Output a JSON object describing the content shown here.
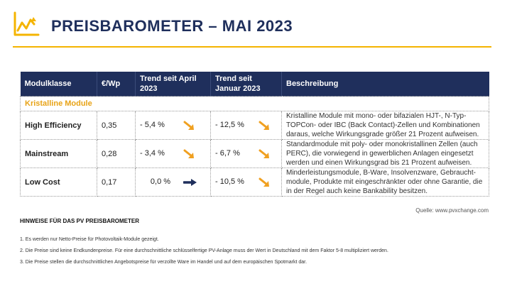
{
  "header": {
    "title": "PREISBAROMETER – MAI 2023",
    "accent": "#f4b400",
    "navy": "#1f2f5c",
    "logo_icon": "chart-line-icon"
  },
  "table": {
    "columns": [
      "Modulklasse",
      "€/Wp",
      "Trend seit April 2023",
      "Trend seit Januar 2023",
      "Beschreibung"
    ],
    "section_label": "Kristalline Module",
    "rows": [
      {
        "klasse": "High Efficiency",
        "price": "0,35",
        "trend_april": "- 5,4 %",
        "trend_april_icon": "arrow-down-right-icon",
        "trend_januar": "- 12,5 %",
        "trend_januar_icon": "arrow-down-right-icon",
        "beschreibung": "Kristalline Module mit mono- oder bifazialen HJT-, N-Typ-TOPCon- oder IBC (Back Contact)-Zellen und Kombinationen daraus, welche Wirkungsgrade größer 21 Prozent aufweisen."
      },
      {
        "klasse": "Mainstream",
        "price": "0,28",
        "trend_april": "- 3,4 %",
        "trend_april_icon": "arrow-down-right-icon",
        "trend_januar": "- 6,7 %",
        "trend_januar_icon": "arrow-down-right-icon",
        "beschreibung": "Standardmodule mit poly- oder monokristallinen Zellen (auch PERC), die vorwiegend in gewerblichen Anlagen eingesetzt werden und einen Wirkungsgrad bis 21 Prozent aufweisen."
      },
      {
        "klasse": "Low Cost",
        "price": "0,17",
        "trend_april": "0,0 %",
        "trend_april_icon": "arrow-right-icon",
        "trend_januar": "- 10,5 %",
        "trend_januar_icon": "arrow-down-right-icon",
        "beschreibung": "Minderleistungsmodule, B-Ware, Insolvenzware, Gebraucht-module, Produkte mit eingeschränkter oder ohne Garantie, die in der Regel auch keine Bankability besitzen."
      }
    ]
  },
  "source": "Quelle: www.pvxchange.com",
  "notes": {
    "heading": "HINWEISE FÜR DAS PV PREISBAROMETER",
    "items": [
      "1.  Es werden nur Netto-Preise für Photovoltaik-Module gezeigt.",
      "2. Die Preise sind keine Endkundenpreise. Für eine durchschnittliche schlüsselfertige PV-Anlage muss der Wert in Deutschland mit dem Faktor 5-8 multipliziert werden.",
      "3. Die Preise stellen die durchschnittlichen Angebotspreise für verzollte Ware im Handel und auf dem europäischen Spotmarkt dar."
    ]
  }
}
